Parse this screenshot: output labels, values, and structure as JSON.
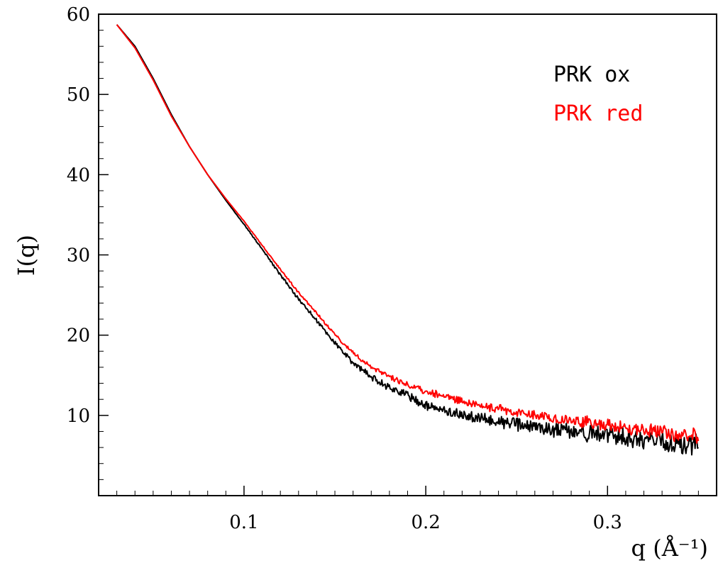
{
  "chart_data": {
    "type": "line",
    "title": "",
    "xlabel": "q (Å⁻¹)",
    "ylabel": "I(q)",
    "xlim": [
      0.02,
      0.36
    ],
    "ylim": [
      0,
      60
    ],
    "x_ticks": [
      0.1,
      0.2,
      0.3
    ],
    "x_tick_labels": [
      "0.1",
      "0.2",
      "0.3"
    ],
    "y_ticks": [
      10,
      20,
      30,
      40,
      50,
      60
    ],
    "y_tick_labels": [
      "10",
      "20",
      "30",
      "40",
      "50",
      "60"
    ],
    "grid": false,
    "legend_position": "top-right",
    "series": [
      {
        "name": "PRK ox",
        "color": "#000000",
        "noise": 1.0,
        "x": [
          0.03,
          0.04,
          0.05,
          0.06,
          0.07,
          0.08,
          0.09,
          0.1,
          0.11,
          0.12,
          0.13,
          0.14,
          0.15,
          0.16,
          0.17,
          0.18,
          0.19,
          0.2,
          0.22,
          0.24,
          0.26,
          0.28,
          0.3,
          0.32,
          0.34,
          0.35
        ],
        "y": [
          58.7,
          56.0,
          52.0,
          47.5,
          43.5,
          40.0,
          36.8,
          33.8,
          30.7,
          27.5,
          24.5,
          21.8,
          19.0,
          16.5,
          14.8,
          13.5,
          12.5,
          11.2,
          10.0,
          9.2,
          8.5,
          8.0,
          7.5,
          7.0,
          6.3,
          6.5
        ]
      },
      {
        "name": "PRK red",
        "color": "#ff0000",
        "noise": 0.7,
        "x": [
          0.03,
          0.04,
          0.05,
          0.06,
          0.07,
          0.08,
          0.09,
          0.1,
          0.11,
          0.12,
          0.13,
          0.14,
          0.15,
          0.16,
          0.17,
          0.18,
          0.19,
          0.2,
          0.22,
          0.24,
          0.26,
          0.28,
          0.3,
          0.32,
          0.34,
          0.35
        ],
        "y": [
          58.7,
          55.8,
          51.8,
          47.3,
          43.5,
          40.0,
          37.0,
          34.2,
          31.2,
          28.2,
          25.3,
          22.7,
          20.0,
          17.8,
          16.0,
          14.8,
          13.8,
          13.0,
          11.8,
          10.8,
          10.0,
          9.4,
          8.8,
          8.2,
          7.5,
          7.5
        ]
      }
    ]
  }
}
